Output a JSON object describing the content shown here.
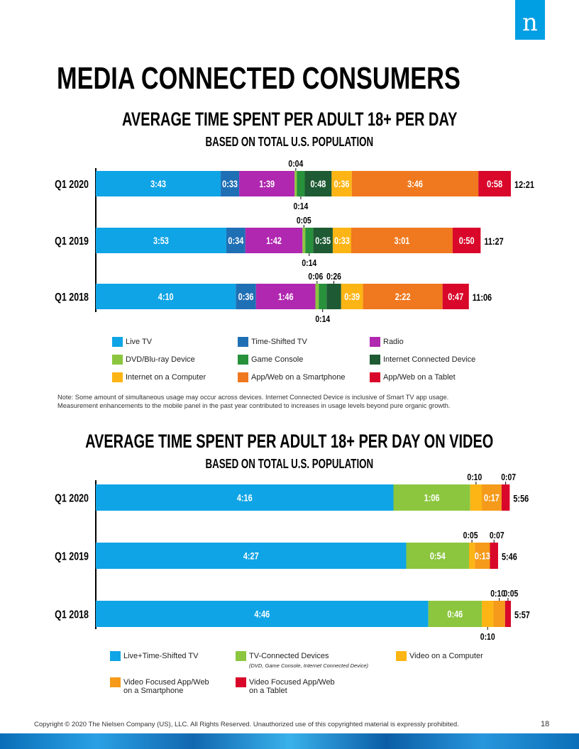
{
  "brand": {
    "logo_letter": "n",
    "color": "#009ee3"
  },
  "page_title": "MEDIA CONNECTED CONSUMERS",
  "chart_data": [
    {
      "type": "bar",
      "orientation": "horizontal-stacked",
      "title": "AVERAGE TIME SPENT PER ADULT 18+ PER DAY",
      "subtitle": "BASED ON TOTAL U.S. POPULATION",
      "categories": [
        "Q1 2020",
        "Q1 2019",
        "Q1 2018"
      ],
      "totals": [
        "12:21",
        "11:27",
        "11:06"
      ],
      "series": [
        {
          "name": "Live TV",
          "color": "#0fa4e6",
          "values": [
            "3:43",
            "3:53",
            "4:10"
          ]
        },
        {
          "name": "Time-Shifted TV",
          "color": "#1f6fb5",
          "values": [
            "0:33",
            "0:34",
            "0:36"
          ]
        },
        {
          "name": "Radio",
          "color": "#b027b0",
          "values": [
            "1:39",
            "1:42",
            "1:46"
          ]
        },
        {
          "name": "DVD/Blu-ray Device",
          "color": "#8cc63f",
          "values": [
            "0:04",
            "0:05",
            "0:06"
          ]
        },
        {
          "name": "Game Console",
          "color": "#27913c",
          "values": [
            "0:14",
            "0:14",
            "0:14"
          ]
        },
        {
          "name": "Internet Connected Device",
          "color": "#1e5a33",
          "values": [
            "0:48",
            "0:35",
            "0:26"
          ]
        },
        {
          "name": "Internet on a Computer",
          "color": "#fdb515",
          "values": [
            "0:36",
            "0:33",
            "0:39"
          ]
        },
        {
          "name": "App/Web on a Smartphone",
          "color": "#f0781e",
          "values": [
            "3:46",
            "3:01",
            "2:22"
          ]
        },
        {
          "name": "App/Web on a Tablet",
          "color": "#d9072a",
          "values": [
            "0:58",
            "0:50",
            "0:47"
          ]
        }
      ],
      "legend_position": "bottom"
    },
    {
      "type": "bar",
      "orientation": "horizontal-stacked",
      "title": "AVERAGE TIME SPENT PER ADULT 18+ PER DAY ON VIDEO",
      "subtitle": "BASED ON TOTAL U.S. POPULATION",
      "categories": [
        "Q1 2020",
        "Q1 2019",
        "Q1 2018"
      ],
      "totals": [
        "5:56",
        "5:46",
        "5:57"
      ],
      "series": [
        {
          "name": "Live+Time-Shifted TV",
          "color": "#0fa4e6",
          "values": [
            "4:16",
            "4:27",
            "4:46"
          ]
        },
        {
          "name": "TV-Connected Devices",
          "note": "(DVD, Game Console, Internet Connected Device)",
          "color": "#8cc63f",
          "values": [
            "1:06",
            "0:54",
            "0:46"
          ]
        },
        {
          "name": "Video on a Computer",
          "color": "#fdb515",
          "values": [
            "0:10",
            "0:05",
            "0:10"
          ]
        },
        {
          "name": "Video Focused App/Web on a Smartphone",
          "color": "#f59a1a",
          "values": [
            "0:17",
            "0:13",
            "0:10"
          ]
        },
        {
          "name": "Video Focused App/Web on a Tablet",
          "color": "#d9072a",
          "values": [
            "0:07",
            "0:07",
            "0:05"
          ]
        }
      ],
      "legend_position": "bottom"
    }
  ],
  "legend1": [
    "Live TV",
    "Time-Shifted TV",
    "Radio",
    "DVD/Blu-ray Device",
    "Game Console",
    "Internet Connected Device",
    "Internet on a Computer",
    "App/Web on a Smartphone",
    "App/Web on a Tablet"
  ],
  "legend2": {
    "live": "Live+Time-Shifted TV",
    "tvc": "TV-Connected Devices",
    "tvc_note": "(DVD, Game Console, Internet Connected Device)",
    "computer": "Video on a Computer",
    "phone_1": "Video Focused App/Web",
    "phone_2": "on a Smartphone",
    "tablet_1": "Video Focused App/Web",
    "tablet_2": "on a Tablet"
  },
  "note": {
    "line1": "Note: Some amount of simultaneous usage may occur across devices. Internet Connected Device is inclusive of Smart TV app usage.",
    "line2": "Measurement enhancements to the mobile panel in the past year contributed to increases in usage levels beyond pure organic growth."
  },
  "footer": "Copyright © 2020 The Nielsen Company (US), LLC. All Rights Reserved. Unauthorized use of this copyrighted material is expressly prohibited.",
  "page_number": "18"
}
